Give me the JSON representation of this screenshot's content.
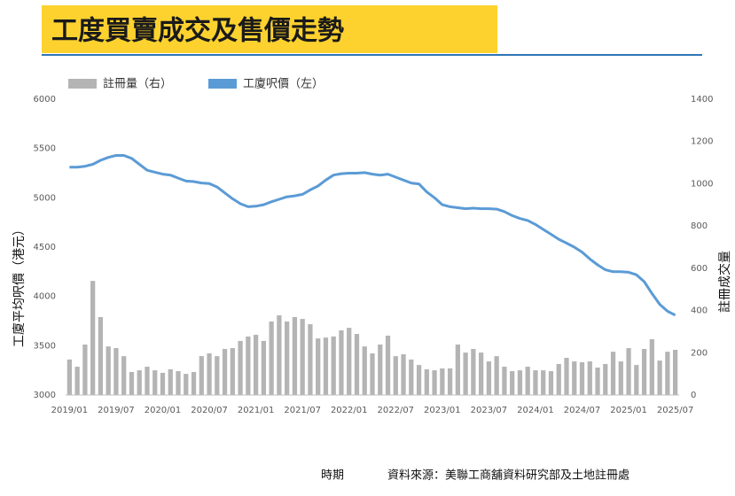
{
  "chart_data": {
    "type": "bar-line",
    "title": "工度買賣成交及售價走勢",
    "y_label": "工廈平均呎價（港元）",
    "y2_label": "註冊成交量",
    "x_label": "時期",
    "source": "資料來源：美聯工商舖資料研究部及土地註冊處",
    "categories": [
      "2019/01",
      null,
      null,
      null,
      null,
      null,
      "2019/07",
      null,
      null,
      null,
      null,
      null,
      "2020/01",
      null,
      null,
      null,
      null,
      null,
      "2020/07",
      null,
      null,
      null,
      null,
      null,
      "2021/01",
      null,
      null,
      null,
      null,
      null,
      "2021/07",
      null,
      null,
      null,
      null,
      null,
      "2022/01",
      null,
      null,
      null,
      null,
      null,
      "2022/07",
      null,
      null,
      null,
      null,
      null,
      "2023/01",
      null,
      null,
      null,
      null,
      null,
      "2023/07",
      null,
      null,
      null,
      null,
      null,
      "2024/01",
      null,
      null,
      null,
      null,
      null,
      "2024/07",
      null,
      null,
      null,
      null,
      null,
      "2025/01",
      null,
      null,
      null,
      null,
      null,
      "2025/07"
    ],
    "series": [
      {
        "name": "註冊量（右）",
        "color": "#b4b4b4",
        "axis": "y2",
        "values": [
          168,
          134,
          239,
          540,
          369,
          230,
          222,
          184,
          109,
          117,
          134,
          117,
          105,
          122,
          113,
          100,
          109,
          184,
          197,
          184,
          218,
          222,
          256,
          277,
          285,
          256,
          348,
          377,
          348,
          369,
          360,
          335,
          268,
          272,
          277,
          306,
          318,
          289,
          230,
          197,
          239,
          281,
          184,
          193,
          168,
          142,
          122,
          117,
          126,
          126,
          239,
          201,
          218,
          201,
          159,
          184,
          134,
          113,
          117,
          134,
          117,
          117,
          113,
          147,
          176,
          159,
          155,
          159,
          130,
          147,
          205,
          159,
          222,
          142,
          218,
          264,
          163,
          205,
          214
        ]
      },
      {
        "name": "工廈呎價（左）",
        "color": "#5b9bd5",
        "axis": "y",
        "values": [
          5310,
          5310,
          5320,
          5340,
          5380,
          5410,
          5430,
          5430,
          5400,
          5340,
          5280,
          5260,
          5240,
          5230,
          5200,
          5170,
          5165,
          5150,
          5145,
          5110,
          5050,
          4990,
          4940,
          4910,
          4915,
          4930,
          4960,
          4985,
          5010,
          5020,
          5035,
          5080,
          5120,
          5180,
          5230,
          5245,
          5250,
          5250,
          5255,
          5240,
          5230,
          5240,
          5210,
          5180,
          5150,
          5140,
          5060,
          5000,
          4930,
          4910,
          4900,
          4890,
          4895,
          4890,
          4890,
          4885,
          4860,
          4820,
          4790,
          4770,
          4730,
          4680,
          4630,
          4580,
          4540,
          4500,
          4450,
          4380,
          4320,
          4270,
          4250,
          4250,
          4245,
          4220,
          4150,
          4030,
          3920,
          3850,
          3810
        ]
      }
    ],
    "ylim": [
      3000,
      6000
    ],
    "yticks": [
      3000,
      3500,
      4000,
      4500,
      5000,
      5500,
      6000
    ],
    "y2lim": [
      0,
      1400
    ],
    "y2ticks": [
      0,
      200,
      400,
      600,
      800,
      1000,
      1200,
      1400
    ],
    "grid": false
  }
}
